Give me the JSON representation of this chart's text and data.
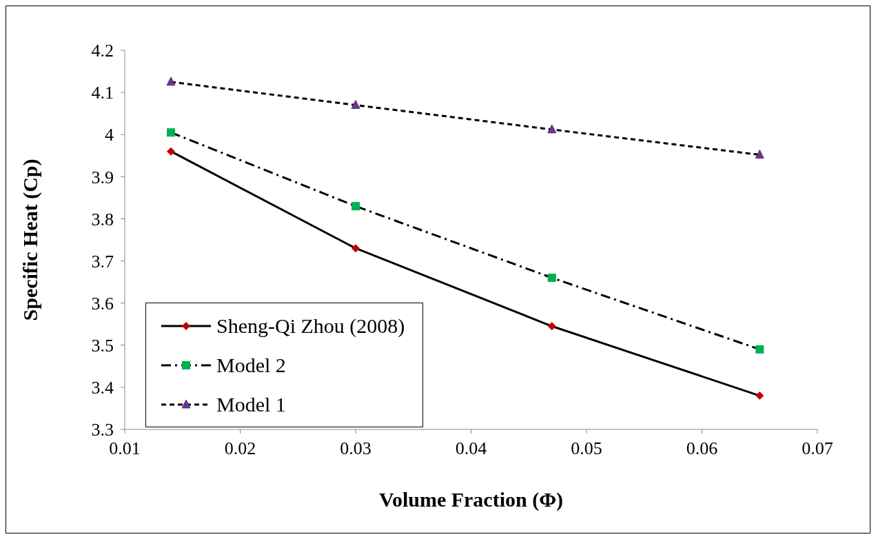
{
  "chart_data": {
    "type": "line",
    "xlabel": "Volume Fraction (Φ)",
    "ylabel": "Specific Heat (Cp)",
    "x": [
      0.014,
      0.03,
      0.047,
      0.065
    ],
    "series": [
      {
        "name": "Sheng-Qi Zhou (2008)",
        "color": "#c00000",
        "marker": "diamond",
        "line_style": "solid",
        "values": [
          3.96,
          3.73,
          3.545,
          3.38
        ]
      },
      {
        "name": "Model 2",
        "color": "#00b050",
        "marker": "square",
        "line_style": "dashed",
        "values": [
          4.005,
          3.83,
          3.66,
          3.49
        ]
      },
      {
        "name": "Model 1",
        "color": "#7030a0",
        "marker": "triangle",
        "line_style": "dotted",
        "values": [
          4.125,
          4.07,
          4.012,
          3.952
        ]
      }
    ],
    "xlim": [
      0.01,
      0.07
    ],
    "xticks": [
      0.01,
      0.02,
      0.03,
      0.04,
      0.05,
      0.06,
      0.07
    ],
    "ylim": [
      3.3,
      4.2
    ],
    "yticks": [
      3.3,
      3.4,
      3.5,
      3.6,
      3.7,
      3.8,
      3.9,
      4,
      4.1,
      4.2
    ],
    "grid": false,
    "legend": "bottom left"
  }
}
